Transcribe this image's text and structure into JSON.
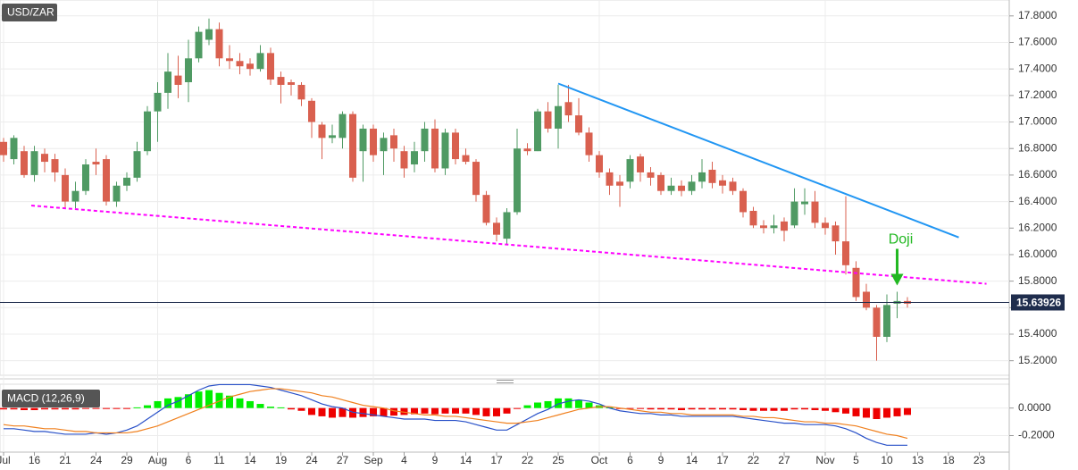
{
  "chart_data": [
    {
      "type": "candlestick",
      "title": "USD/ZAR",
      "categories": [
        "Jul",
        null,
        null,
        "16",
        null,
        null,
        "21",
        null,
        null,
        "24",
        null,
        null,
        "29",
        null,
        null,
        "Aug",
        null,
        null,
        "6",
        null,
        null,
        "11",
        null,
        null,
        "14",
        null,
        null,
        "19",
        null,
        null,
        "24",
        null,
        null,
        "27",
        null,
        null,
        "Sep",
        null,
        null,
        "4",
        null,
        null,
        "9",
        null,
        null,
        "14",
        null,
        null,
        "17",
        null,
        null,
        "22",
        null,
        null,
        "25",
        null,
        null,
        null,
        "Oct",
        null,
        null,
        "6",
        null,
        null,
        "9",
        null,
        null,
        "14",
        null,
        null,
        "17",
        null,
        null,
        "22",
        null,
        null,
        "27",
        null,
        null,
        null,
        "Nov",
        null,
        null,
        "5",
        null,
        null,
        "10",
        null,
        null,
        "13",
        null,
        null,
        "18",
        null,
        null,
        "23"
      ],
      "open": [
        16.85,
        16.72,
        16.78,
        16.6,
        16.76,
        16.72,
        16.6,
        16.4,
        16.48,
        16.7,
        16.72,
        16.4,
        16.52,
        16.58,
        16.78,
        17.08,
        17.22,
        17.35,
        17.3,
        17.48,
        17.62,
        17.7,
        17.48,
        17.46,
        17.44,
        17.4,
        17.52,
        17.34,
        17.3,
        17.28,
        17.16,
        16.98,
        16.88,
        16.88,
        17.06,
        16.78,
        16.95,
        16.78,
        16.9,
        16.78,
        16.68,
        16.78,
        16.95,
        16.65,
        16.92,
        16.75,
        16.7,
        16.45,
        16.24,
        16.12,
        16.32,
        16.8,
        16.78,
        17.08,
        16.95,
        17.15,
        17.05,
        16.92,
        16.75,
        16.62,
        16.55,
        16.55,
        16.74,
        16.62,
        16.6,
        16.48,
        16.52,
        16.48,
        16.55,
        16.64,
        16.56,
        16.55,
        16.48,
        16.33,
        16.22,
        16.2,
        16.25,
        16.22,
        16.38,
        16.4,
        16.24,
        16.22,
        16.1,
        15.9,
        15.72,
        15.6,
        15.38,
        15.63,
        15.65,
        null,
        null,
        null,
        null,
        null,
        null,
        null
      ],
      "high": [
        16.88,
        16.9,
        16.82,
        16.82,
        16.8,
        16.76,
        16.65,
        16.55,
        16.72,
        16.8,
        16.75,
        16.55,
        16.62,
        16.85,
        17.12,
        17.3,
        17.52,
        17.5,
        17.62,
        17.72,
        17.78,
        17.75,
        17.58,
        17.52,
        17.48,
        17.58,
        17.56,
        17.38,
        17.32,
        17.3,
        17.18,
        17.0,
        16.98,
        17.08,
        17.08,
        16.98,
        16.98,
        16.92,
        16.95,
        16.82,
        16.85,
        17.0,
        17.02,
        16.95,
        16.95,
        16.8,
        16.72,
        16.48,
        16.28,
        16.35,
        16.95,
        16.84,
        17.1,
        17.15,
        17.28,
        17.28,
        17.18,
        16.96,
        16.78,
        16.65,
        16.6,
        16.75,
        16.76,
        16.66,
        16.62,
        16.58,
        16.56,
        16.6,
        16.72,
        16.7,
        16.6,
        16.58,
        16.5,
        16.36,
        16.26,
        16.3,
        16.28,
        16.5,
        16.5,
        16.48,
        16.28,
        16.25,
        16.44,
        15.95,
        15.78,
        15.62,
        15.7,
        15.72,
        15.68,
        null,
        null,
        null,
        null,
        null,
        null,
        null
      ],
      "low": [
        16.7,
        16.68,
        16.58,
        16.55,
        16.62,
        16.55,
        16.35,
        16.35,
        16.45,
        16.6,
        16.37,
        16.36,
        16.48,
        16.55,
        16.75,
        16.85,
        17.1,
        17.18,
        17.15,
        17.45,
        17.58,
        17.42,
        17.4,
        17.36,
        17.35,
        17.38,
        17.28,
        17.14,
        17.2,
        17.12,
        16.88,
        16.72,
        16.84,
        16.8,
        16.55,
        16.55,
        16.7,
        16.6,
        16.7,
        16.58,
        16.62,
        16.7,
        16.62,
        16.6,
        16.68,
        16.68,
        16.4,
        16.22,
        16.1,
        16.08,
        16.3,
        16.75,
        16.78,
        16.92,
        16.8,
        17.0,
        16.9,
        16.7,
        16.58,
        16.45,
        16.36,
        16.5,
        16.55,
        16.52,
        16.45,
        16.45,
        16.44,
        16.45,
        16.5,
        16.5,
        16.46,
        16.45,
        16.28,
        16.2,
        16.16,
        16.16,
        16.1,
        16.2,
        16.3,
        16.2,
        16.15,
        16.0,
        15.85,
        15.65,
        15.58,
        15.2,
        15.34,
        15.52,
        15.6,
        null,
        null,
        null,
        null,
        null,
        null,
        null
      ],
      "close": [
        16.75,
        16.88,
        16.6,
        16.78,
        16.7,
        16.62,
        16.4,
        16.48,
        16.68,
        16.68,
        16.4,
        16.52,
        16.58,
        16.78,
        17.08,
        17.22,
        17.38,
        17.28,
        17.48,
        17.68,
        17.7,
        17.48,
        17.46,
        17.42,
        17.4,
        17.52,
        17.32,
        17.28,
        17.28,
        17.17,
        17.0,
        16.88,
        16.9,
        17.06,
        16.58,
        16.95,
        16.75,
        16.88,
        16.8,
        16.65,
        16.78,
        16.95,
        16.65,
        16.92,
        16.72,
        16.7,
        16.45,
        16.24,
        16.15,
        16.32,
        16.8,
        16.78,
        17.08,
        16.95,
        17.12,
        17.05,
        16.92,
        16.75,
        16.62,
        16.52,
        16.52,
        16.72,
        16.62,
        16.58,
        16.48,
        16.52,
        16.48,
        16.55,
        16.62,
        16.54,
        16.52,
        16.48,
        16.32,
        16.22,
        16.2,
        16.22,
        16.18,
        16.4,
        16.4,
        16.24,
        16.2,
        16.1,
        15.92,
        15.68,
        15.6,
        15.38,
        15.62,
        15.65,
        15.63,
        null,
        null,
        null,
        null,
        null,
        null,
        null
      ],
      "up_color": "#4f9a63",
      "down_color": "#d9604f",
      "ylim": [
        15.09,
        17.92
      ],
      "yticks": [
        {
          "value": 15.2,
          "label": "15.2000"
        },
        {
          "value": 15.4,
          "label": "15.4000"
        },
        {
          "value": 15.6,
          "label": "15.6000"
        },
        {
          "value": 15.8,
          "label": "15.8000"
        },
        {
          "value": 16.0,
          "label": "16.0000"
        },
        {
          "value": 16.2,
          "label": "16.2000"
        },
        {
          "value": 16.4,
          "label": "16.4000"
        },
        {
          "value": 16.6,
          "label": "16.6000"
        },
        {
          "value": 16.8,
          "label": "16.8000"
        },
        {
          "value": 17.0,
          "label": "17.0000"
        },
        {
          "value": 17.2,
          "label": "17.2000"
        },
        {
          "value": 17.4,
          "label": "17.4000"
        },
        {
          "value": 17.6,
          "label": "17.6000"
        },
        {
          "value": 17.8,
          "label": "17.8000"
        }
      ],
      "grid": true,
      "last_price": 15.63926,
      "last_price_color": "#1f2d4d",
      "trendlines": [
        {
          "color": "#2196f3",
          "style": "solid",
          "x": [
            54,
            93
          ],
          "y": [
            17.29,
            16.13
          ]
        },
        {
          "color": "#ff00ff",
          "style": "dashed",
          "x": [
            2.7,
            95.7
          ],
          "y": [
            16.37,
            15.78
          ]
        }
      ],
      "annotation": {
        "text": "Doji",
        "index": 87,
        "color": "#22b822"
      }
    },
    {
      "type": "macd",
      "title": "MACD (12,26,9)",
      "histogram": [
        -0.01,
        -0.01,
        -0.015,
        -0.015,
        -0.01,
        -0.01,
        -0.01,
        -0.01,
        -0.005,
        -0.005,
        -0.005,
        -0.005,
        -0.005,
        0.005,
        0.02,
        0.05,
        0.07,
        0.08,
        0.1,
        0.12,
        0.13,
        0.11,
        0.09,
        0.07,
        0.05,
        0.03,
        0.01,
        0.005,
        -0.01,
        -0.02,
        -0.05,
        -0.06,
        -0.07,
        -0.065,
        -0.07,
        -0.065,
        -0.06,
        -0.06,
        -0.055,
        -0.05,
        -0.045,
        -0.04,
        -0.045,
        -0.04,
        -0.04,
        -0.04,
        -0.05,
        -0.06,
        -0.06,
        -0.04,
        -0.005,
        0.02,
        0.04,
        0.05,
        0.07,
        0.07,
        0.06,
        0.04,
        0.02,
        0.005,
        -0.005,
        -0.005,
        -0.005,
        -0.01,
        -0.01,
        -0.01,
        -0.015,
        -0.01,
        -0.01,
        -0.01,
        -0.01,
        -0.01,
        -0.015,
        -0.02,
        -0.02,
        -0.02,
        -0.02,
        -0.01,
        -0.01,
        -0.015,
        -0.02,
        -0.03,
        -0.04,
        -0.06,
        -0.07,
        -0.08,
        -0.07,
        -0.06,
        -0.05,
        null,
        null,
        null,
        null,
        null,
        null,
        null
      ],
      "pos_color": "#00ee00",
      "neg_color": "#ee0000",
      "macd": [
        -0.15,
        -0.15,
        -0.16,
        -0.17,
        -0.17,
        -0.18,
        -0.19,
        -0.19,
        -0.19,
        -0.18,
        -0.19,
        -0.18,
        -0.16,
        -0.13,
        -0.08,
        -0.03,
        0.02,
        0.05,
        0.09,
        0.13,
        0.16,
        0.17,
        0.17,
        0.17,
        0.17,
        0.16,
        0.15,
        0.13,
        0.11,
        0.09,
        0.06,
        0.03,
        0.01,
        0.0,
        -0.03,
        -0.04,
        -0.05,
        -0.06,
        -0.07,
        -0.08,
        -0.08,
        -0.08,
        -0.09,
        -0.09,
        -0.09,
        -0.1,
        -0.12,
        -0.14,
        -0.16,
        -0.16,
        -0.12,
        -0.08,
        -0.04,
        -0.01,
        0.03,
        0.05,
        0.06,
        0.05,
        0.03,
        0.0,
        -0.02,
        -0.03,
        -0.04,
        -0.04,
        -0.05,
        -0.05,
        -0.06,
        -0.06,
        -0.06,
        -0.06,
        -0.06,
        -0.06,
        -0.07,
        -0.08,
        -0.09,
        -0.1,
        -0.11,
        -0.11,
        -0.12,
        -0.12,
        -0.12,
        -0.13,
        -0.15,
        -0.18,
        -0.22,
        -0.25,
        -0.27,
        -0.27,
        -0.27,
        null,
        null,
        null,
        null,
        null,
        null,
        null
      ],
      "macd_color": "#2850c8",
      "signal": [
        -0.12,
        -0.13,
        -0.13,
        -0.14,
        -0.15,
        -0.15,
        -0.16,
        -0.17,
        -0.17,
        -0.18,
        -0.18,
        -0.18,
        -0.18,
        -0.17,
        -0.15,
        -0.13,
        -0.1,
        -0.07,
        -0.04,
        -0.01,
        0.02,
        0.05,
        0.08,
        0.1,
        0.12,
        0.13,
        0.14,
        0.14,
        0.13,
        0.12,
        0.11,
        0.09,
        0.08,
        0.06,
        0.04,
        0.02,
        0.01,
        0.0,
        -0.02,
        -0.03,
        -0.04,
        -0.05,
        -0.05,
        -0.06,
        -0.06,
        -0.07,
        -0.08,
        -0.09,
        -0.1,
        -0.11,
        -0.11,
        -0.1,
        -0.09,
        -0.07,
        -0.05,
        -0.03,
        -0.01,
        0.0,
        0.01,
        0.01,
        0.0,
        -0.01,
        -0.02,
        -0.03,
        -0.03,
        -0.04,
        -0.04,
        -0.05,
        -0.05,
        -0.05,
        -0.05,
        -0.05,
        -0.06,
        -0.06,
        -0.07,
        -0.07,
        -0.08,
        -0.09,
        -0.1,
        -0.1,
        -0.11,
        -0.11,
        -0.12,
        -0.13,
        -0.15,
        -0.17,
        -0.19,
        -0.2,
        -0.22,
        null,
        null,
        null,
        null,
        null,
        null,
        null
      ],
      "signal_color": "#f0801e",
      "ylim": [
        -0.32,
        0.173
      ],
      "yticks": [
        {
          "value": 0,
          "label": "0.0000"
        },
        {
          "value": -0.2,
          "label": "-0.2000"
        }
      ]
    }
  ]
}
